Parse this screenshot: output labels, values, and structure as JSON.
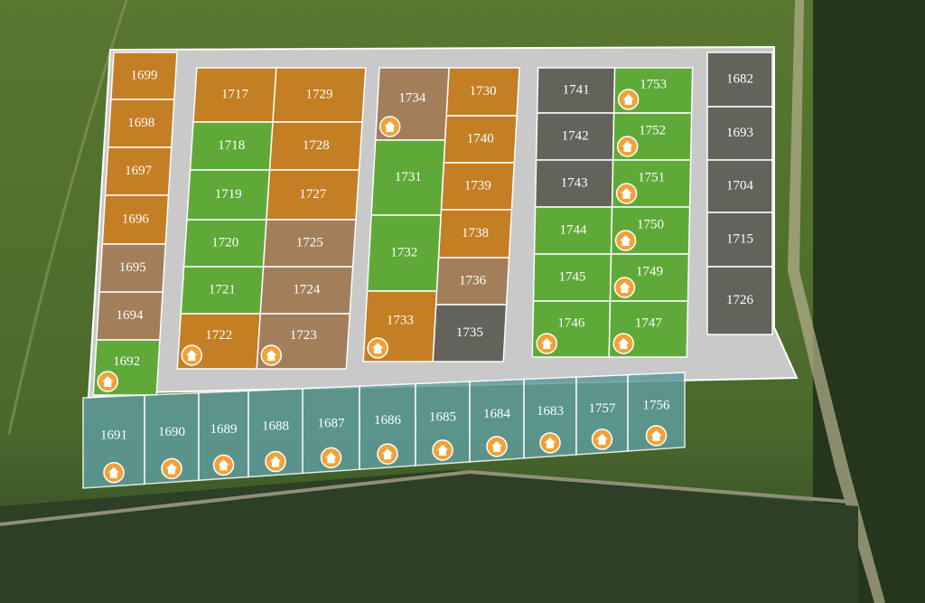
{
  "plots": [
    {
      "label": "1699",
      "color": "#c47a1c",
      "house": false
    },
    {
      "label": "1698",
      "color": "#c47a1c",
      "house": false
    },
    {
      "label": "1697",
      "color": "#c47a1c",
      "house": false
    },
    {
      "label": "1696",
      "color": "#c47a1c",
      "house": false
    },
    {
      "label": "1695",
      "color": "#a07a56",
      "house": false
    },
    {
      "label": "1694",
      "color": "#a07a56",
      "house": false
    },
    {
      "label": "1692",
      "color": "#5aa832",
      "house": true
    },
    {
      "label": "1717",
      "color": "#c47a1c",
      "house": false
    },
    {
      "label": "1729",
      "color": "#c47a1c",
      "house": false
    },
    {
      "label": "1718",
      "color": "#5aa832",
      "house": false
    },
    {
      "label": "1728",
      "color": "#c47a1c",
      "house": false
    },
    {
      "label": "1719",
      "color": "#5aa832",
      "house": false
    },
    {
      "label": "1727",
      "color": "#c47a1c",
      "house": false
    },
    {
      "label": "1720",
      "color": "#5aa832",
      "house": false
    },
    {
      "label": "1725",
      "color": "#a07a56",
      "house": false
    },
    {
      "label": "1721",
      "color": "#5aa832",
      "house": false
    },
    {
      "label": "1724",
      "color": "#a07a56",
      "house": false
    },
    {
      "label": "1722",
      "color": "#c47a1c",
      "house": true
    },
    {
      "label": "1723",
      "color": "#a07a56",
      "house": true
    },
    {
      "label": "1730",
      "color": "#c47a1c",
      "house": false
    },
    {
      "label": "1740",
      "color": "#c47a1c",
      "house": false
    },
    {
      "label": "1739",
      "color": "#c47a1c",
      "house": false
    },
    {
      "label": "1738",
      "color": "#c47a1c",
      "house": false
    },
    {
      "label": "1736",
      "color": "#a07a56",
      "house": false
    },
    {
      "label": "1735",
      "color": "#5e5e56",
      "house": false
    },
    {
      "label": "1734",
      "color": "#a07a56",
      "house": true
    },
    {
      "label": "1731",
      "color": "#5aa832",
      "house": false
    },
    {
      "label": "1732",
      "color": "#5aa832",
      "house": false
    },
    {
      "label": "1733",
      "color": "#c47a1c",
      "house": true
    },
    {
      "label": "1741",
      "color": "#5e5e56",
      "house": false
    },
    {
      "label": "1753",
      "color": "#5aa832",
      "house": true
    },
    {
      "label": "1742",
      "color": "#5e5e56",
      "house": false
    },
    {
      "label": "1752",
      "color": "#5aa832",
      "house": true
    },
    {
      "label": "1743",
      "color": "#5e5e56",
      "house": false
    },
    {
      "label": "1751",
      "color": "#5aa832",
      "house": true
    },
    {
      "label": "1744",
      "color": "#5aa832",
      "house": false
    },
    {
      "label": "1750",
      "color": "#5aa832",
      "house": true
    },
    {
      "label": "1745",
      "color": "#5aa832",
      "house": false
    },
    {
      "label": "1749",
      "color": "#5aa832",
      "house": true
    },
    {
      "label": "1746",
      "color": "#5aa832",
      "house": true
    },
    {
      "label": "1747",
      "color": "#5aa832",
      "house": true
    },
    {
      "label": "1682",
      "color": "#5e5e56",
      "house": false
    },
    {
      "label": "1693",
      "color": "#5e5e56",
      "house": false
    },
    {
      "label": "1704",
      "color": "#5e5e56",
      "house": false
    },
    {
      "label": "1715",
      "color": "#5e5e56",
      "house": false
    },
    {
      "label": "1726",
      "color": "#5e5e56",
      "house": false
    },
    {
      "label": "1691",
      "color": "#5f9c9c",
      "house": true
    },
    {
      "label": "1690",
      "color": "#5f9c9c",
      "house": true
    },
    {
      "label": "1689",
      "color": "#5f9c9c",
      "house": true
    },
    {
      "label": "1688",
      "color": "#5f9c9c",
      "house": true
    },
    {
      "label": "1687",
      "color": "#5f9c9c",
      "house": true
    },
    {
      "label": "1686",
      "color": "#5f9c9c",
      "house": true
    },
    {
      "label": "1685",
      "color": "#5f9c9c",
      "house": true
    },
    {
      "label": "1684",
      "color": "#5f9c9c",
      "house": true
    },
    {
      "label": "1683",
      "color": "#5f9c9c",
      "house": true
    },
    {
      "label": "1757",
      "color": "#5f9c9c",
      "house": true
    },
    {
      "label": "1756",
      "color": "#5f9c9c",
      "house": true
    }
  ]
}
